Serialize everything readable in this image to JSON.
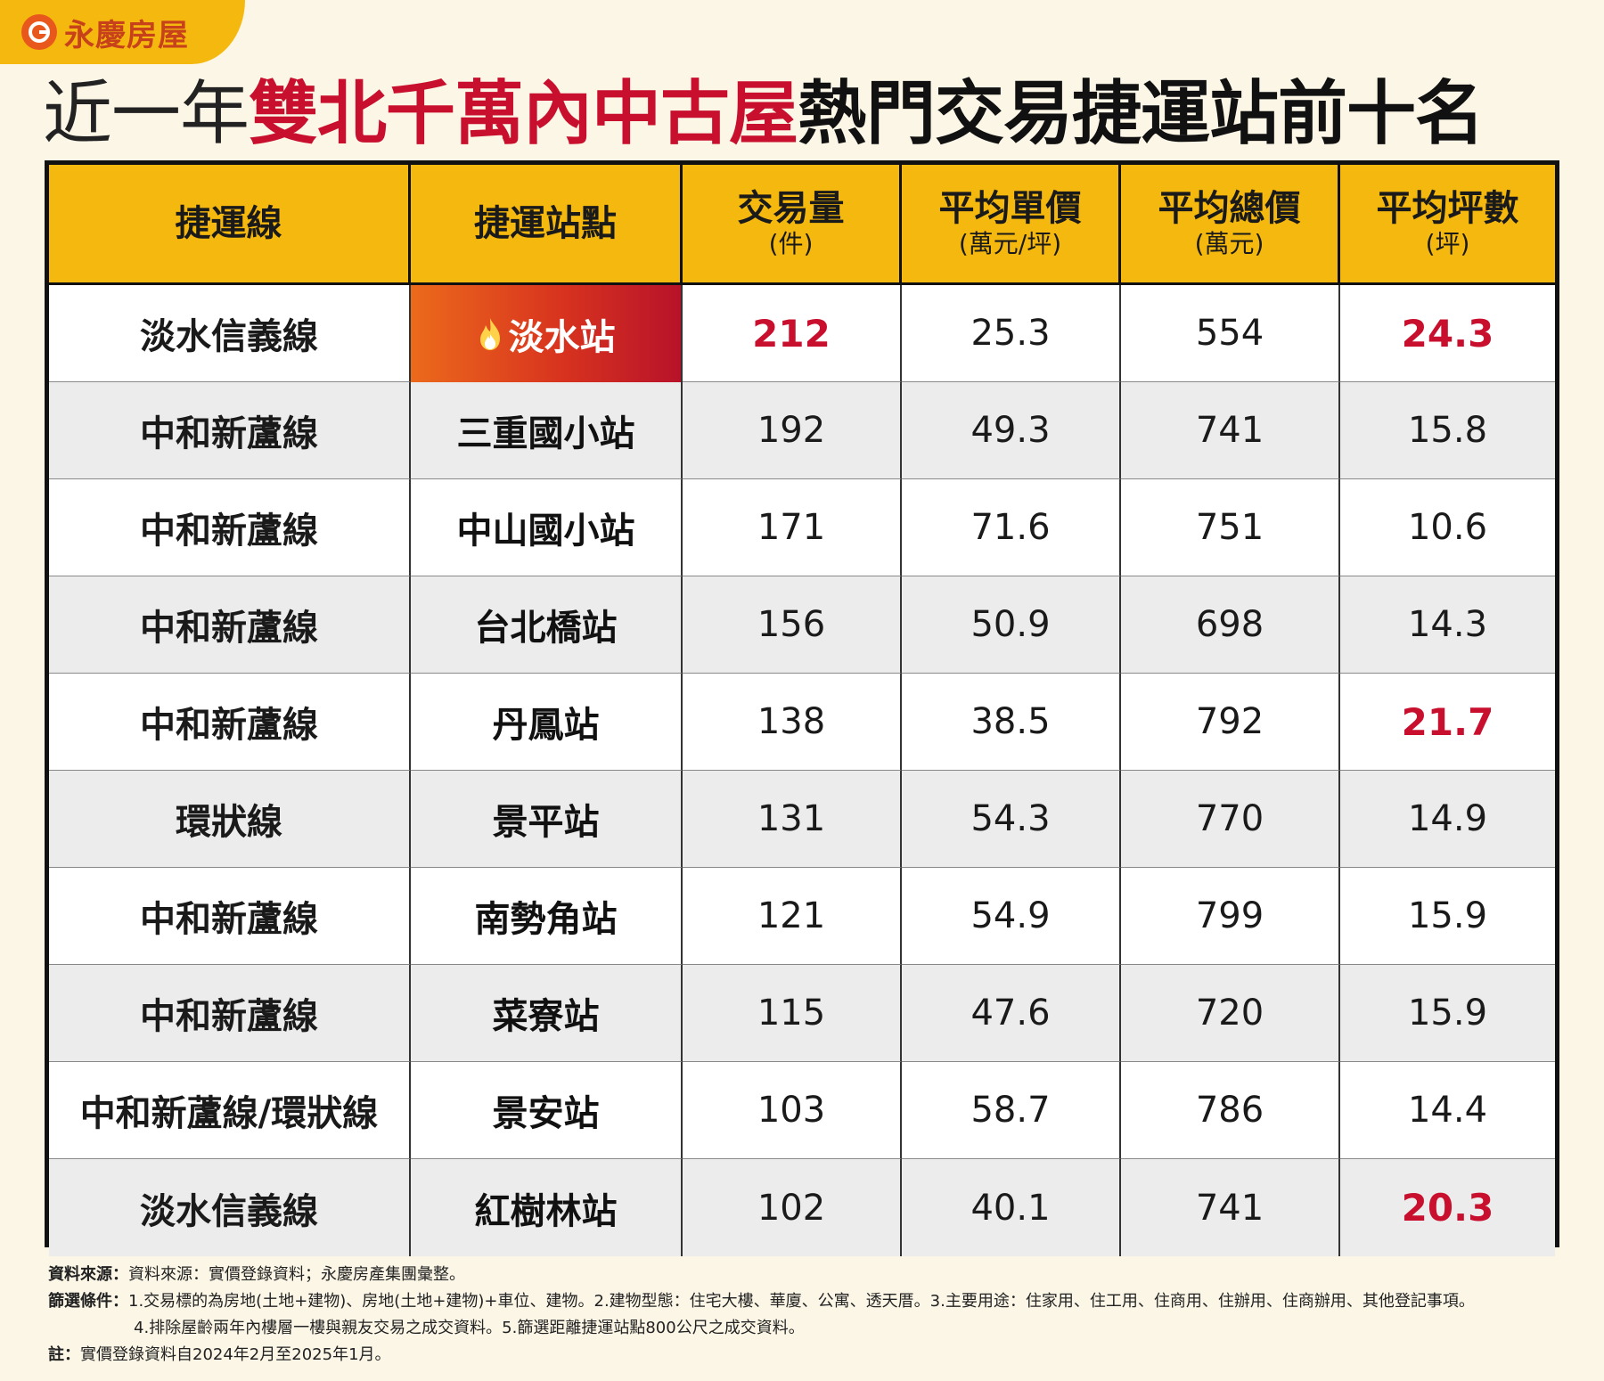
{
  "logo": {
    "text": "永慶房屋",
    "icon": "yungching-logo-icon",
    "color": "#c7421a",
    "tab_color": "#f5b80e"
  },
  "title": {
    "prefix": "近一年",
    "highlight": "雙北千萬內中古屋",
    "suffix": "熱門交易捷運站前十名",
    "highlight_color": "#c8102e"
  },
  "table": {
    "columns": [
      {
        "main": "捷運線",
        "unit": ""
      },
      {
        "main": "捷運站點",
        "unit": ""
      },
      {
        "main": "交易量",
        "unit": "(件)"
      },
      {
        "main": "平均單價",
        "unit": "(萬元/坪)"
      },
      {
        "main": "平均總價",
        "unit": "(萬元)"
      },
      {
        "main": "平均坪數",
        "unit": "(坪)"
      }
    ],
    "rows": [
      {
        "line": "淡水信義線",
        "station": "淡水站",
        "volume": "212",
        "unit_price": "25.3",
        "total_price": "554",
        "area": "24.3"
      },
      {
        "line": "中和新蘆線",
        "station": "三重國小站",
        "volume": "192",
        "unit_price": "49.3",
        "total_price": "741",
        "area": "15.8"
      },
      {
        "line": "中和新蘆線",
        "station": "中山國小站",
        "volume": "171",
        "unit_price": "71.6",
        "total_price": "751",
        "area": "10.6"
      },
      {
        "line": "中和新蘆線",
        "station": "台北橋站",
        "volume": "156",
        "unit_price": "50.9",
        "total_price": "698",
        "area": "14.3"
      },
      {
        "line": "中和新蘆線",
        "station": "丹鳳站",
        "volume": "138",
        "unit_price": "38.5",
        "total_price": "792",
        "area": "21.7"
      },
      {
        "line": "環狀線",
        "station": "景平站",
        "volume": "131",
        "unit_price": "54.3",
        "total_price": "770",
        "area": "14.9"
      },
      {
        "line": "中和新蘆線",
        "station": "南勢角站",
        "volume": "121",
        "unit_price": "54.9",
        "total_price": "799",
        "area": "15.9"
      },
      {
        "line": "中和新蘆線",
        "station": "菜寮站",
        "volume": "115",
        "unit_price": "47.6",
        "total_price": "720",
        "area": "15.9"
      },
      {
        "line": "中和新蘆線/環狀線",
        "station": "景安站",
        "volume": "103",
        "unit_price": "58.7",
        "total_price": "786",
        "area": "14.4"
      },
      {
        "line": "淡水信義線",
        "station": "紅樹林站",
        "volume": "102",
        "unit_price": "40.1",
        "total_price": "741",
        "area": "20.3"
      }
    ],
    "header_color": "#f5b80e",
    "highlight_color": "#c8102e"
  },
  "notes": {
    "source_label": "資料來源：",
    "source_text": "資料來源：實價登錄資料；永慶房產集團彙整。",
    "filter_label": "篩選條件：",
    "filter_line1": "1.交易標的為房地(土地+建物)、房地(土地+建物)+車位、建物。2.建物型態：住宅大樓、華廈、公寓、透天厝。3.主要用途：住家用、住工用、住商用、住辦用、住商辦用、其他登記事項。",
    "filter_line2": "4.排除屋齡兩年內樓層一樓與親友交易之成交資料。5.篩選距離捷運站點800公尺之成交資料。",
    "note_label": "註：",
    "note_text": "實價登錄資料自2024年2月至2025年1月。"
  }
}
